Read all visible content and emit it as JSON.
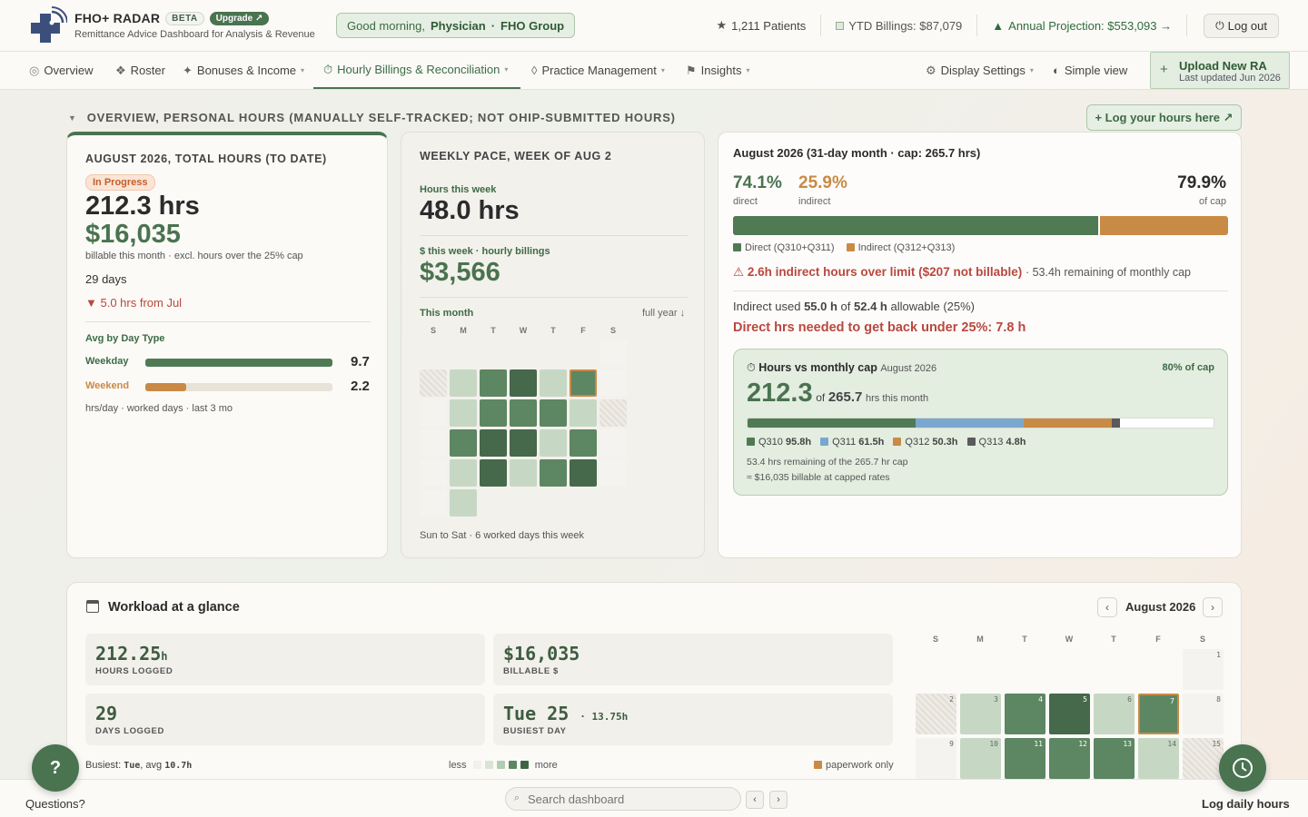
{
  "app": {
    "name": "FHO+ RADAR",
    "beta": "BETA",
    "upgrade": "Upgrade ↗",
    "subtitle": "Remittance Advice Dashboard for Analysis & Revenue"
  },
  "greeting": {
    "prefix": "Good morning,",
    "role": "Physician",
    "sep": "·",
    "group": "FHO Group"
  },
  "top_stats": {
    "patients": "1,211 Patients",
    "ytd": "YTD Billings: $87,079",
    "projection": "Annual Projection: $553,093 →",
    "logout": "Log out"
  },
  "nav": {
    "overview": "Overview",
    "roster": "Roster",
    "bonuses": "Bonuses & Income",
    "hourly": "Hourly Billings & Reconciliation",
    "practice": "Practice Management",
    "insights": "Insights",
    "display": "Display Settings",
    "simple": "Simple view",
    "upload_title": "Upload New RA",
    "upload_sub": "Last updated Jun 2026"
  },
  "section": {
    "title": "OVERVIEW, PERSONAL HOURS (MANUALLY SELF-TRACKED; NOT OHIP-SUBMITTED HOURS)",
    "log_button": "+ Log your hours here ↗"
  },
  "month_card": {
    "title": "AUGUST 2026, TOTAL HOURS (TO DATE)",
    "status": "In Progress",
    "hours": "212.3 hrs",
    "billable": "$16,035",
    "billable_note": "billable this month · excl. hours over the 25% cap",
    "days": "29 days",
    "delta": "▼ 5.0 hrs from Jul",
    "avg_title": "Avg by Day Type",
    "weekday_label": "Weekday",
    "weekday_value": "9.7",
    "weekday_fraction": 1.0,
    "weekend_label": "Weekend",
    "weekend_value": "2.2",
    "weekend_fraction": 0.22,
    "footnote": "hrs/day · worked days · last 3 mo"
  },
  "week_card": {
    "title": "WEEKLY PACE, WEEK OF AUG 2",
    "hours_label": "Hours this week",
    "hours": "48.0 hrs",
    "dollars_label": "$ this week · hourly billings",
    "dollars": "$3,566",
    "month_label": "This month",
    "full_year": "full year ↓",
    "days": [
      "S",
      "M",
      "T",
      "W",
      "T",
      "F",
      "S"
    ],
    "footnote": "Sun to Sat · 6 worked days this week",
    "heat": [
      [
        -1,
        -1,
        -1,
        -1,
        -1,
        -1,
        0
      ],
      [
        -2,
        1,
        3,
        4,
        1,
        3,
        0
      ],
      [
        0,
        1,
        3,
        3,
        3,
        1,
        -2
      ],
      [
        0,
        3,
        4,
        4,
        1,
        3,
        0
      ],
      [
        0,
        1,
        4,
        1,
        3,
        4,
        0
      ],
      [
        0,
        1,
        -1,
        -1,
        -1,
        -1,
        -1
      ]
    ],
    "highlight": [
      1,
      5
    ]
  },
  "cap_card": {
    "title": "August 2026 (31-day month · cap: 265.7 hrs)",
    "direct_pct": "74.1%",
    "direct_label": "direct",
    "indirect_pct": "25.9%",
    "indirect_label": "indirect",
    "cap_pct": "79.9%",
    "cap_label": "of cap",
    "direct_fraction": 0.741,
    "legend_direct": "Direct (Q310+Q311)",
    "legend_indirect": "Indirect (Q312+Q313)",
    "warning": "2.6h indirect hours over limit ($207 not billable)",
    "warning_tail": "· 53.4h remaining of monthly cap",
    "indirect_used_pre": "Indirect used",
    "indirect_used": "55.0 h",
    "of": "of",
    "allowable": "52.4 h",
    "allowable_tail": "allowable (25%)",
    "direct_needed": "Direct hrs needed to get back under 25%: 7.8 h",
    "inner_title": "Hours vs monthly cap",
    "inner_month": "August 2026",
    "inner_pct": "80% of cap",
    "inner_hours": "212.3",
    "inner_of": "of",
    "inner_cap": "265.7",
    "inner_unit": "hrs this month",
    "segments": [
      {
        "code": "Q310",
        "hours": "95.8h",
        "value": 95.8,
        "color": "#4f7a54"
      },
      {
        "code": "Q311",
        "hours": "61.5h",
        "value": 61.5,
        "color": "#7ba7cf"
      },
      {
        "code": "Q312",
        "hours": "50.3h",
        "value": 50.3,
        "color": "#c98a45"
      },
      {
        "code": "Q313",
        "hours": "4.8h",
        "value": 4.8,
        "color": "#5a5a5a"
      }
    ],
    "cap_total": 265.7,
    "remaining": "53.4 hrs remaining of the 265.7 hr cap",
    "billable": "≈ $16,035 billable at capped rates"
  },
  "workload": {
    "title": "Workload at a glance",
    "month": "August 2026",
    "hours_value": "212.25",
    "hours_unit": "h",
    "hours_label": "HOURS LOGGED",
    "billable_value": "$16,035",
    "billable_label": "BILLABLE $",
    "days_value": "29",
    "days_label": "DAYS LOGGED",
    "busiest_value": "Tue 25",
    "busiest_extra": "· 13.75h",
    "busiest_label": "BUSIEST DAY",
    "busiest_note_pre": "Busiest:",
    "busiest_note_day": "Tue",
    "busiest_note_mid": ", avg",
    "busiest_note_avg": "10.7h",
    "less": "less",
    "more": "more",
    "paperwork": "paperwork only",
    "cal_days": [
      "S",
      "M",
      "T",
      "W",
      "T",
      "F",
      "S"
    ],
    "cal_rows": [
      [
        null,
        null,
        null,
        null,
        null,
        null,
        {
          "d": "1",
          "l": 0
        }
      ],
      [
        {
          "d": "2",
          "l": -2
        },
        {
          "d": "3",
          "l": 1
        },
        {
          "d": "4",
          "l": 3
        },
        {
          "d": "5",
          "l": 4
        },
        {
          "d": "6",
          "l": 1
        },
        {
          "d": "7",
          "l": 3,
          "h": true
        },
        {
          "d": "8",
          "l": 0
        }
      ],
      [
        {
          "d": "9",
          "l": 0
        },
        {
          "d": "10",
          "l": 1
        },
        {
          "d": "11",
          "l": 3
        },
        {
          "d": "12",
          "l": 3
        },
        {
          "d": "13",
          "l": 3
        },
        {
          "d": "14",
          "l": 1
        },
        {
          "d": "15",
          "l": -2
        }
      ]
    ]
  },
  "bottom": {
    "questions": "Questions?",
    "search_placeholder": "Search dashboard",
    "log_daily": "Log daily hours"
  }
}
